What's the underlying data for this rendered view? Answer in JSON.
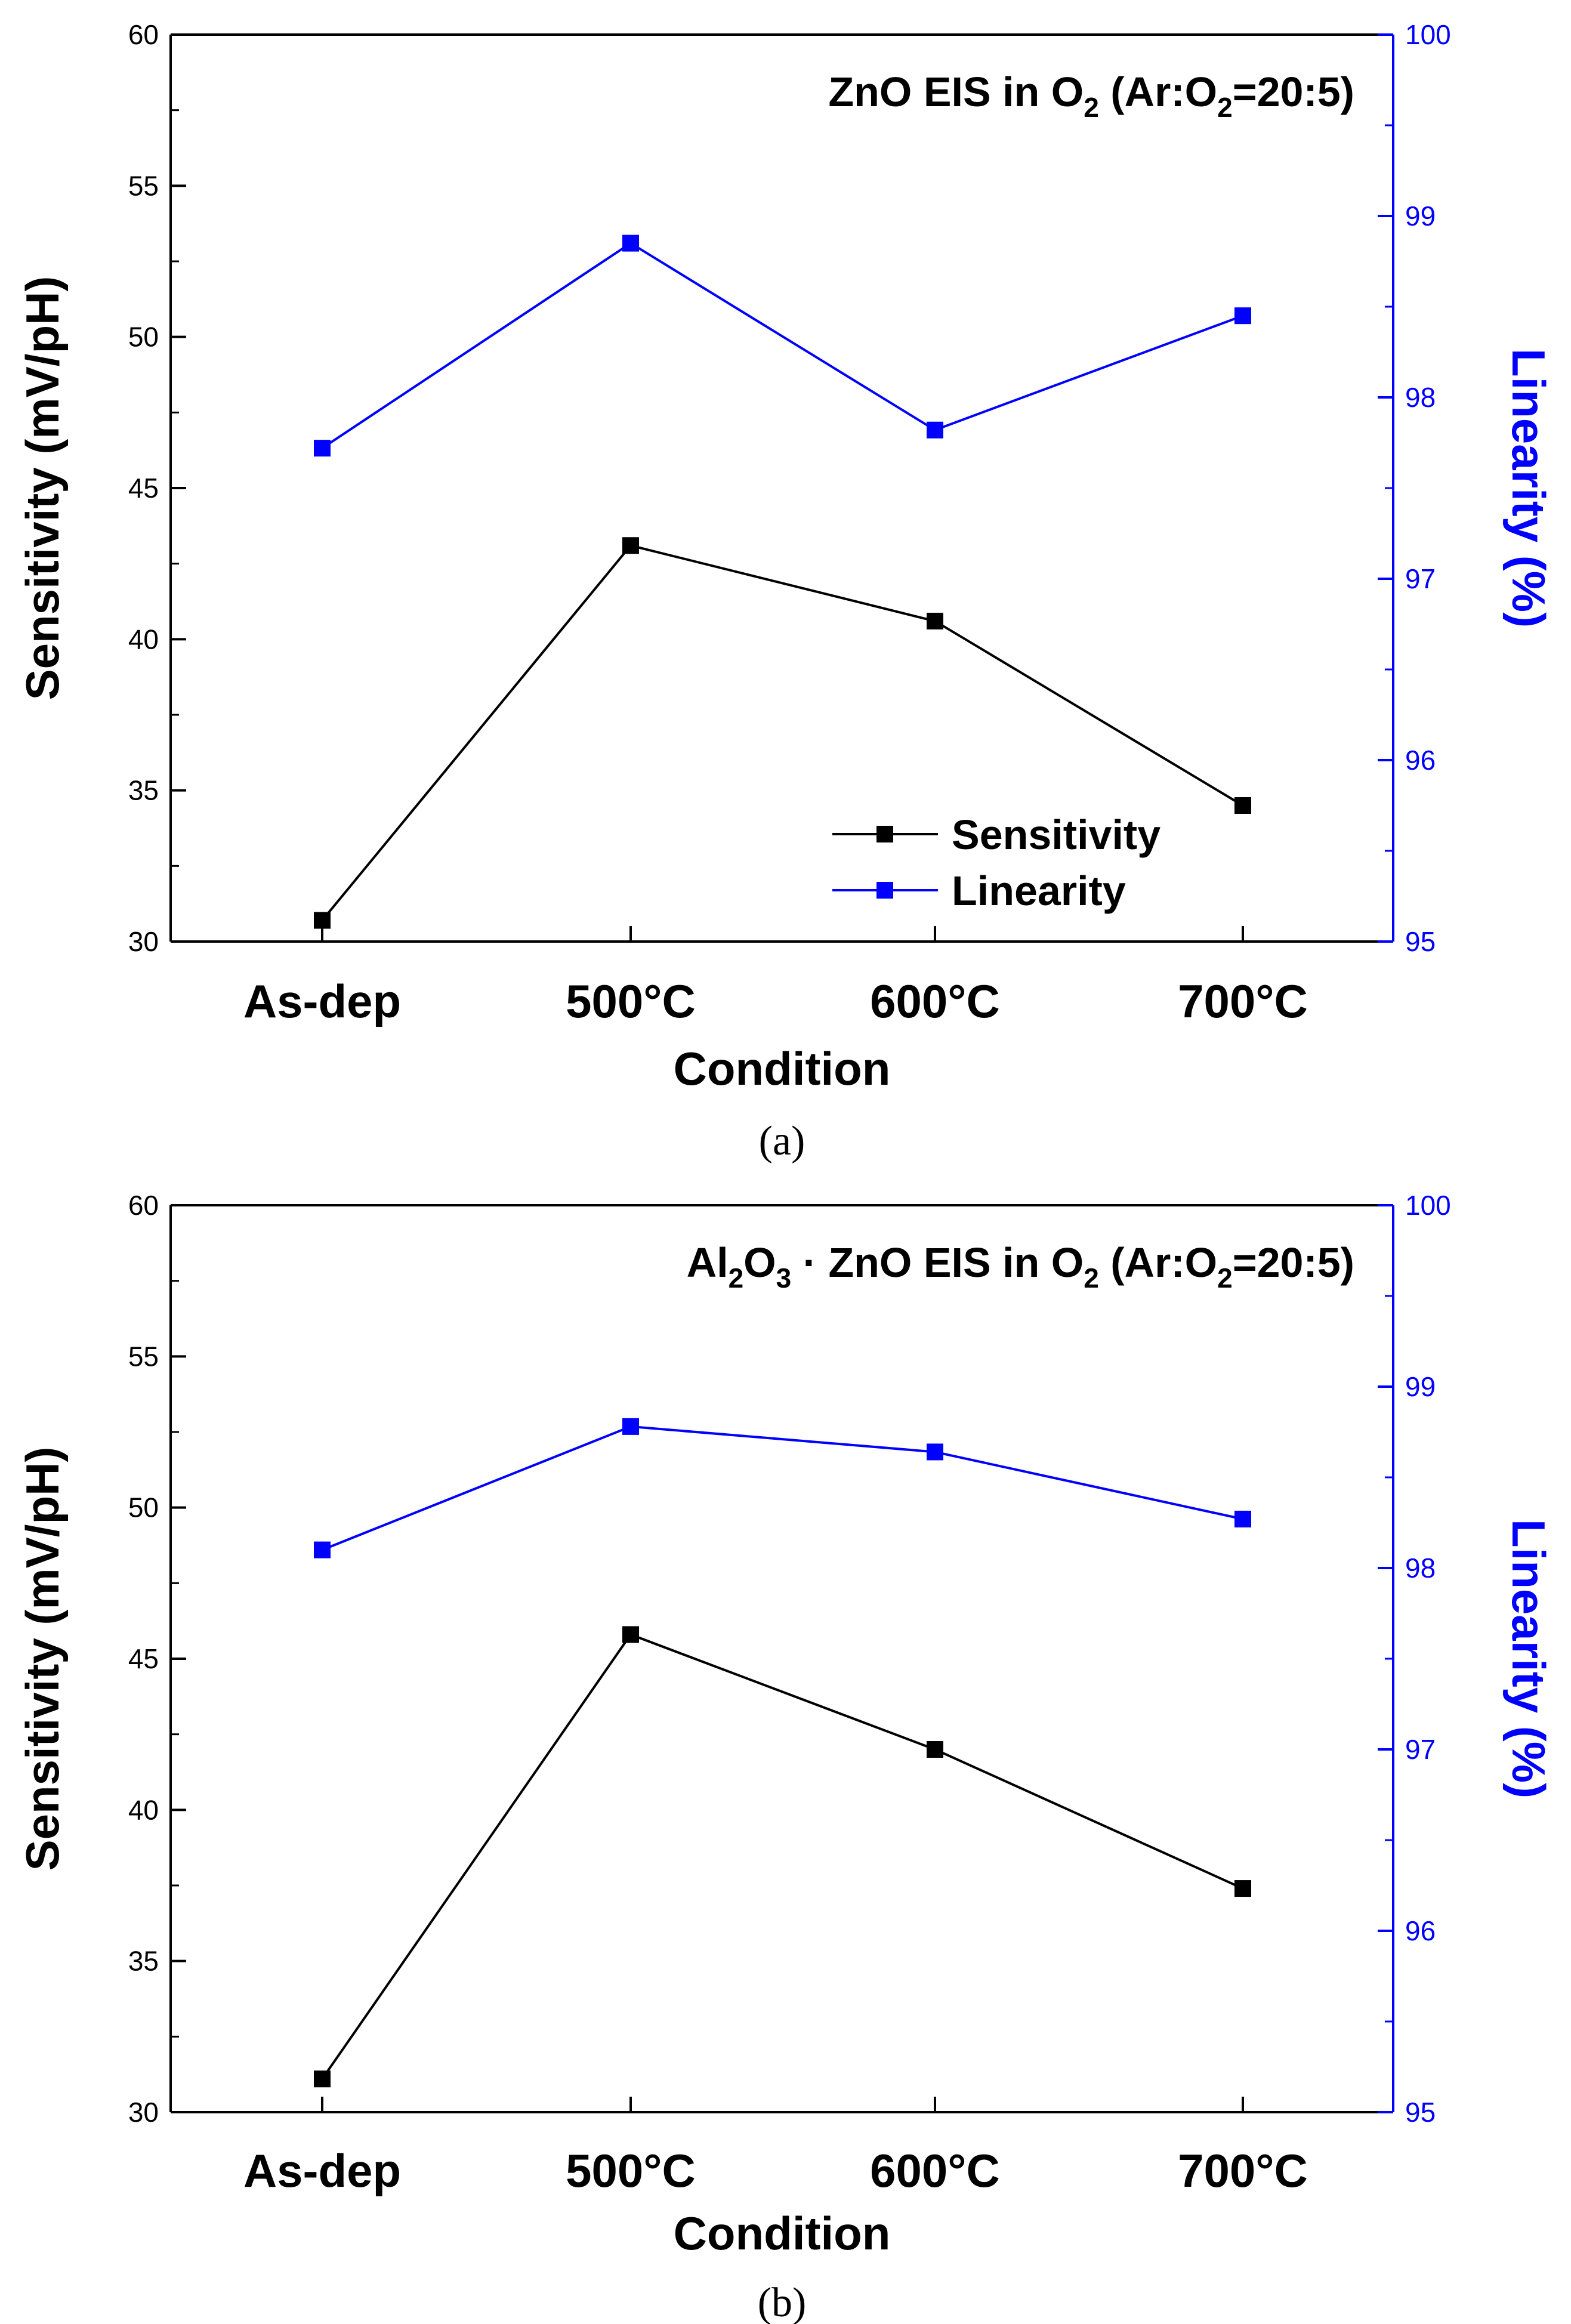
{
  "chart_data": [
    {
      "type": "line",
      "panel_label": "(a)",
      "title": {
        "pre": "ZnO EIS in O",
        "sub": "2",
        "mid": " (Ar:O",
        "sub2": "2",
        "post": "=20:5)"
      },
      "categories": [
        "As-dep",
        "500°C",
        "600°C",
        "700°C"
      ],
      "xlabel": "Condition",
      "ylabel": "Sensitivity (mV/pH)",
      "y2label": "Linearity (%)",
      "ylim": [
        30,
        60
      ],
      "y2lim": [
        95,
        100
      ],
      "yticks": [
        30,
        35,
        40,
        45,
        50,
        55,
        60
      ],
      "y2ticks": [
        95,
        96,
        97,
        98,
        99,
        100
      ],
      "legend": {
        "position": "bottom-right",
        "entries": [
          "Sensitivity",
          "Linearity"
        ]
      },
      "series": [
        {
          "name": "Sensitivity",
          "axis": "left",
          "color": "#000000",
          "values": [
            30.7,
            43.1,
            40.6,
            34.5
          ]
        },
        {
          "name": "Linearity",
          "axis": "right",
          "color": "#0000ff",
          "values": [
            97.72,
            98.85,
            97.82,
            98.45
          ]
        }
      ]
    },
    {
      "type": "line",
      "panel_label": "(b)",
      "title": {
        "pre": "Al",
        "sub": "2",
        "mid": "O",
        "sub2": "3",
        "post": " · ZnO EIS in O",
        "sub3": "2",
        "post2": " (Ar:O",
        "sub4": "2",
        "post3": "=20:5)"
      },
      "categories": [
        "As-dep",
        "500°C",
        "600°C",
        "700°C"
      ],
      "xlabel": "Condition",
      "ylabel": "Sensitivity (mV/pH)",
      "y2label": "Linearity (%)",
      "ylim": [
        30,
        60
      ],
      "y2lim": [
        95,
        100
      ],
      "yticks": [
        30,
        35,
        40,
        45,
        50,
        55,
        60
      ],
      "y2ticks": [
        95,
        96,
        97,
        98,
        99,
        100
      ],
      "series": [
        {
          "name": "Sensitivity",
          "axis": "left",
          "color": "#000000",
          "values": [
            31.1,
            45.8,
            42.0,
            37.4
          ]
        },
        {
          "name": "Linearity",
          "axis": "right",
          "color": "#0000ff",
          "values": [
            98.1,
            98.78,
            98.64,
            98.27
          ]
        }
      ]
    }
  ]
}
